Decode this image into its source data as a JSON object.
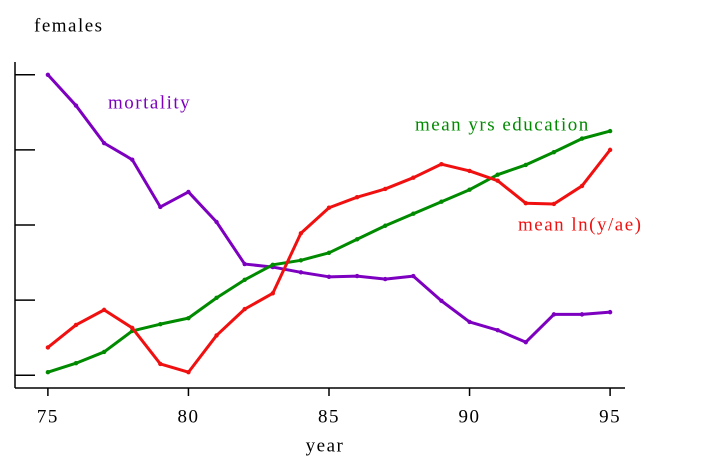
{
  "chart_data": {
    "type": "line",
    "title": "females",
    "x_label": "year",
    "x": [
      75,
      76,
      77,
      78,
      79,
      80,
      81,
      82,
      83,
      84,
      85,
      86,
      87,
      88,
      89,
      90,
      91,
      92,
      93,
      94,
      95
    ],
    "xlim": [
      73.83,
      95.53
    ],
    "xticks": [
      75,
      80,
      85,
      90,
      95
    ],
    "ylim": [
      -0.17,
      4.17
    ],
    "yticks": [
      0,
      1,
      2,
      3,
      4
    ],
    "series": [
      {
        "name": "mortality",
        "color": "#7d00c0",
        "values": [
          4.0,
          3.59,
          3.09,
          2.87,
          2.24,
          2.44,
          2.04,
          1.48,
          1.44,
          1.37,
          1.31,
          1.32,
          1.28,
          1.32,
          0.99,
          0.71,
          0.6,
          0.44,
          0.81,
          0.81,
          0.84
        ]
      },
      {
        "name": "mean yrs education",
        "color": "#008a00",
        "values": [
          0.04,
          0.16,
          0.31,
          0.59,
          0.68,
          0.76,
          1.03,
          1.27,
          1.47,
          1.53,
          1.63,
          1.81,
          1.99,
          2.15,
          2.31,
          2.47,
          2.67,
          2.8,
          2.97,
          3.15,
          3.25
        ]
      },
      {
        "name": "mean ln(y/ae)",
        "color": "#f01010",
        "values": [
          0.37,
          0.67,
          0.87,
          0.63,
          0.15,
          0.04,
          0.53,
          0.88,
          1.09,
          1.89,
          2.23,
          2.37,
          2.48,
          2.63,
          2.81,
          2.72,
          2.59,
          2.29,
          2.28,
          2.52,
          3.0
        ]
      }
    ]
  }
}
